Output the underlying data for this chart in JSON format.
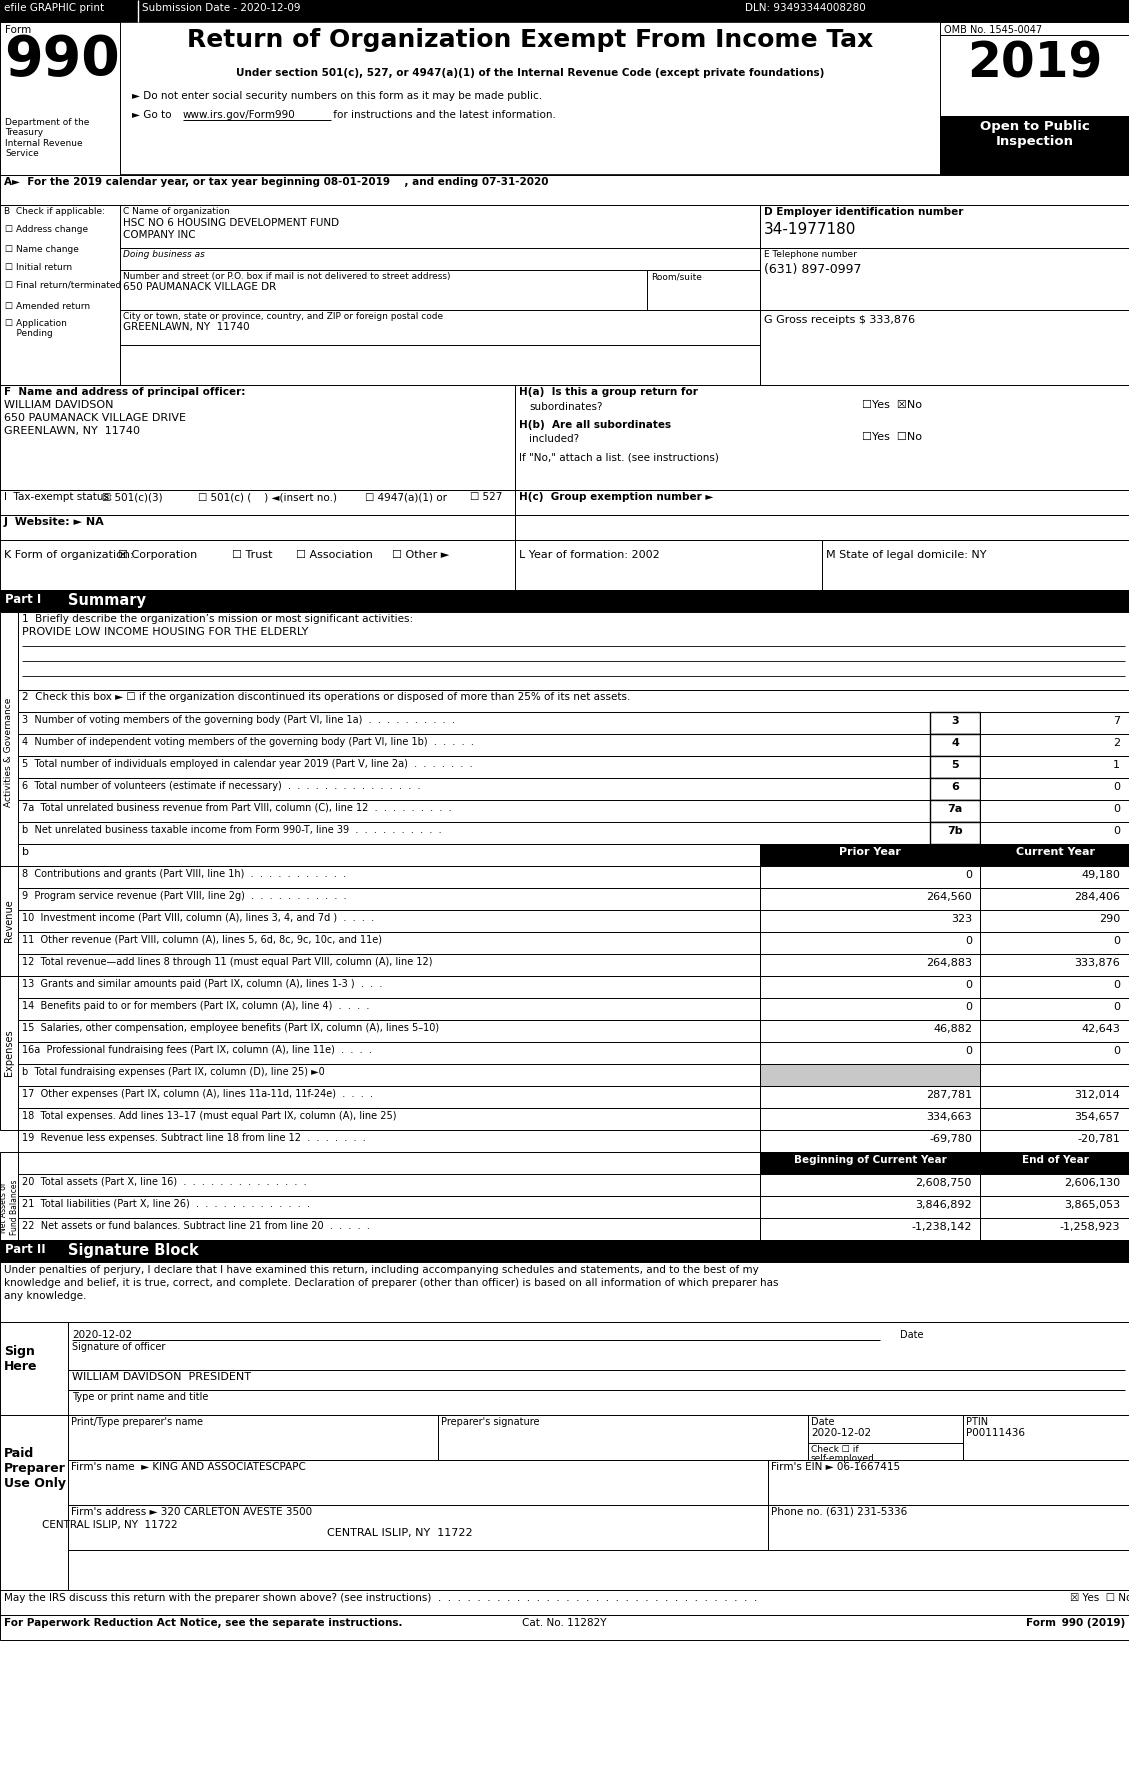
{
  "title": "Return of Organization Exempt From Income Tax",
  "subtitle1": "Under section 501(c), 527, or 4947(a)(1) of the Internal Revenue Code (except private foundations)",
  "subtitle2": "► Do not enter social security numbers on this form as it may be made public.",
  "subtitle3_a": "► Go to ",
  "subtitle3_b": "www.irs.gov/Form990",
  "subtitle3_c": " for instructions and the latest information.",
  "omb": "OMB No. 1545-0047",
  "year": "2019",
  "line_A": "A►  For the 2019 calendar year, or tax year beginning 08-01-2019    , and ending 07-31-2020",
  "org_name1": "HSC NO 6 HOUSING DEVELOPMENT FUND",
  "org_name2": "COMPANY INC",
  "ein": "34-1977180",
  "phone": "(631) 897-0997",
  "address": "650 PAUMANACK VILLAGE DR",
  "city": "GREENLAWN, NY  11740",
  "officer_name": "WILLIAM DAVIDSON",
  "officer_addr1": "650 PAUMANACK VILLAGE DRIVE",
  "officer_addr2": "GREENLAWN, NY  11740",
  "line3_val": "7",
  "line4_val": "2",
  "line5_val": "1",
  "line6_val": "0",
  "line7a_val": "0",
  "line7b_val": "0",
  "line8_prior": "0",
  "line8_curr": "49,180",
  "line9_prior": "264,560",
  "line9_curr": "284,406",
  "line10_prior": "323",
  "line10_curr": "290",
  "line11_prior": "0",
  "line11_curr": "0",
  "line12_prior": "264,883",
  "line12_curr": "333,876",
  "line13_prior": "0",
  "line13_curr": "0",
  "line14_prior": "0",
  "line14_curr": "0",
  "line15_prior": "46,882",
  "line15_curr": "42,643",
  "line16a_prior": "0",
  "line16a_curr": "0",
  "line17_prior": "287,781",
  "line17_curr": "312,014",
  "line18_prior": "334,663",
  "line18_curr": "354,657",
  "line19_prior": "-69,780",
  "line19_curr": "-20,781",
  "line20_beg": "2,608,750",
  "line20_end": "2,606,130",
  "line21_beg": "3,846,892",
  "line21_end": "3,865,053",
  "line22_beg": "-1,238,142",
  "line22_end": "-1,258,923",
  "sig_date": "2020-12-02",
  "officer_title": "WILLIAM DAVIDSON  PRESIDENT",
  "prep_ptin": "P00111436",
  "prep_name": "KING AND ASSOCIATESCPAPC",
  "firms_ein": "06-1667415",
  "prep_address": "320 CARLETON AVESTE 3500",
  "prep_city": "CENTRAL ISLIP, NY  11722",
  "prep_phone": "(631) 231-5336",
  "gray_bg": "#c8c8c8"
}
